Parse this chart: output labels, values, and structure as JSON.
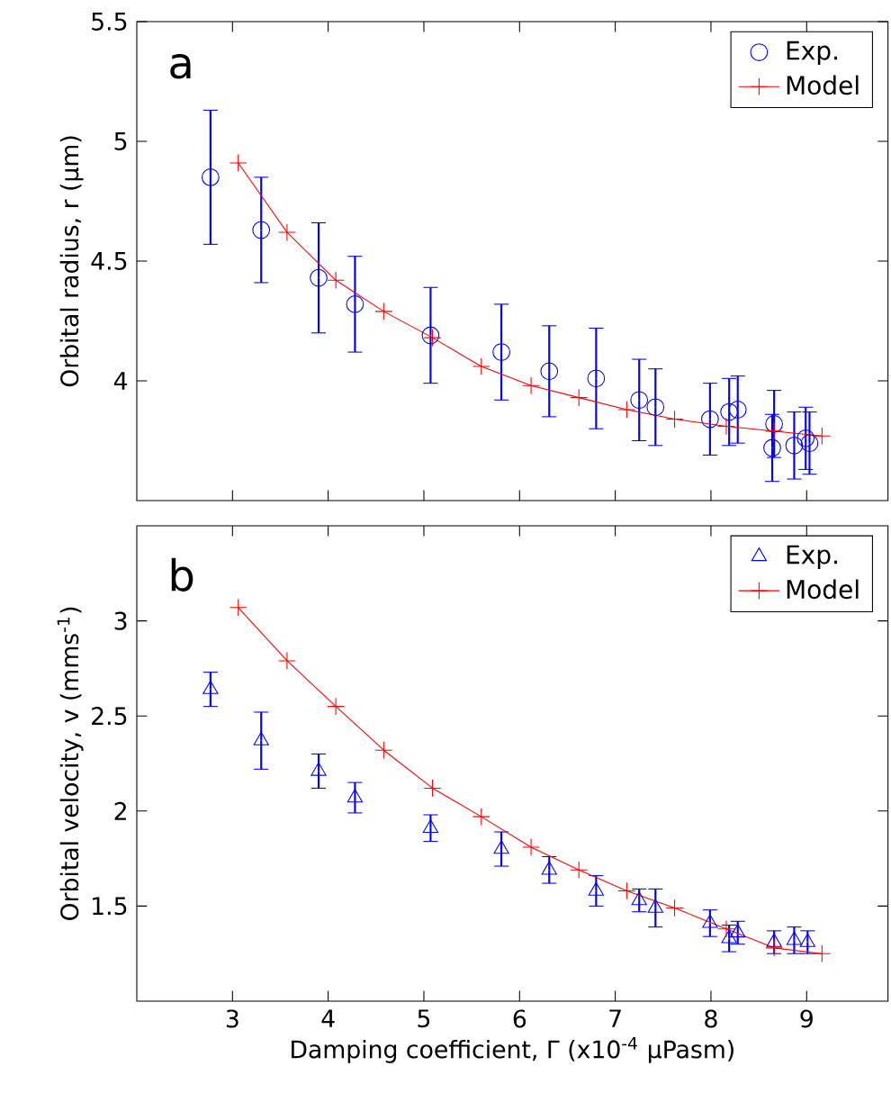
{
  "chart_data": [
    {
      "type": "scatter",
      "ylabel": "Orbital radius, r (μm)",
      "annotations": [
        "a"
      ],
      "xlim": [
        2,
        9.85
      ],
      "ylim": [
        3.5,
        5.5
      ],
      "yticks": [
        4,
        4.5,
        5,
        5.5
      ],
      "xticks": [
        3,
        4,
        5,
        6,
        7,
        8,
        9
      ],
      "tick_labels": "y",
      "legend": "top right",
      "grid": false,
      "series": [
        {
          "name": "Exp.",
          "marker": "circle",
          "color": "#0000ff",
          "x": [
            2.77,
            3.3,
            3.9,
            4.28,
            5.07,
            5.81,
            6.31,
            6.8,
            7.25,
            7.42,
            7.99,
            8.19,
            8.28,
            8.64,
            8.66,
            8.87,
            8.99,
            9.03
          ],
          "values": [
            4.85,
            4.63,
            4.43,
            4.32,
            4.19,
            4.12,
            4.04,
            4.01,
            3.92,
            3.89,
            3.84,
            3.87,
            3.88,
            3.72,
            3.82,
            3.73,
            3.76,
            3.74
          ],
          "errors": [
            0.28,
            0.22,
            0.23,
            0.2,
            0.2,
            0.2,
            0.19,
            0.21,
            0.17,
            0.16,
            0.15,
            0.14,
            0.14,
            0.14,
            0.14,
            0.14,
            0.13,
            0.13
          ]
        },
        {
          "name": "Model",
          "type": "line",
          "marker": "cross",
          "line_style": "solid",
          "color": "#ff0000",
          "x": [
            3.06,
            3.57,
            4.08,
            4.58,
            5.09,
            5.6,
            6.12,
            6.62,
            7.12,
            7.62,
            8.16,
            8.66,
            9.16
          ],
          "values": [
            4.91,
            4.62,
            4.42,
            4.29,
            4.18,
            4.06,
            3.98,
            3.93,
            3.88,
            3.84,
            3.81,
            3.79,
            3.77
          ]
        }
      ]
    },
    {
      "type": "scatter",
      "xlabel": "Damping coefficient, Γ (x10$^{-4}$ μPasm)",
      "ylabel": "Orbital velocity, v (mms$^{-1}$)",
      "annotations": [
        "b"
      ],
      "xlim": [
        2,
        9.85
      ],
      "ylim": [
        1,
        3.5
      ],
      "xticks": [
        3,
        4,
        5,
        6,
        7,
        8,
        9
      ],
      "yticks": [
        1.5,
        2,
        2.5,
        3
      ],
      "legend": "top right",
      "grid": false,
      "series": [
        {
          "name": "Exp.",
          "marker": "triangle",
          "color": "#0000ff",
          "x": [
            2.77,
            3.3,
            3.9,
            4.28,
            5.07,
            5.81,
            6.31,
            6.8,
            7.25,
            7.42,
            7.99,
            8.19,
            8.28,
            8.66,
            8.87,
            9.01
          ],
          "values": [
            2.64,
            2.37,
            2.21,
            2.07,
            1.91,
            1.8,
            1.69,
            1.58,
            1.53,
            1.49,
            1.41,
            1.33,
            1.36,
            1.31,
            1.32,
            1.31
          ],
          "errors": [
            0.09,
            0.15,
            0.09,
            0.08,
            0.07,
            0.09,
            0.07,
            0.08,
            0.06,
            0.1,
            0.07,
            0.07,
            0.06,
            0.06,
            0.07,
            0.06
          ]
        },
        {
          "name": "Model",
          "type": "line",
          "marker": "cross",
          "line_style": "solid",
          "color": "#ff0000",
          "x": [
            3.06,
            3.57,
            4.08,
            4.58,
            5.09,
            5.6,
            6.12,
            6.62,
            7.12,
            7.62,
            8.16,
            8.66,
            9.16
          ],
          "values": [
            3.07,
            2.79,
            2.55,
            2.32,
            2.12,
            1.97,
            1.81,
            1.69,
            1.58,
            1.49,
            1.38,
            1.28,
            1.25
          ]
        }
      ]
    }
  ]
}
